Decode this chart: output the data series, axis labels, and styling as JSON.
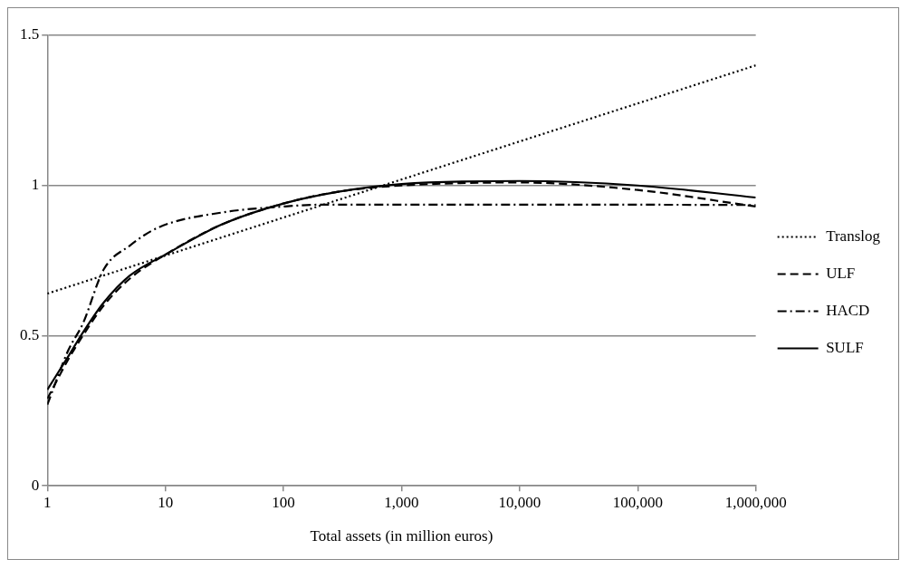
{
  "chart_data": {
    "type": "line",
    "xlabel": "Total assets (in million euros)",
    "log": "x",
    "xlim": [
      1,
      1000000
    ],
    "xticks": [
      1,
      10,
      100,
      {
        "value": 1000,
        "label": "1,000"
      },
      {
        "value": 10000,
        "label": "10,000"
      },
      {
        "value": 100000,
        "label": "100,000"
      },
      {
        "value": 1000000,
        "label": "1,000,000"
      }
    ],
    "ylim": [
      0,
      1.5
    ],
    "yticks": [
      0,
      0.5,
      1,
      1.5
    ],
    "grid": "y",
    "legend": "right",
    "marker": "none",
    "series": [
      {
        "name": "Translog",
        "color": "#000000",
        "line_style": "dotted",
        "x": [
          1,
          1000000
        ],
        "values": [
          0.64,
          1.4
        ]
      },
      {
        "name": "ULF",
        "color": "#000000",
        "line_style": "dashed",
        "x": [
          1,
          1.5,
          2,
          3,
          5,
          10,
          30,
          100,
          300,
          1000,
          10000,
          100000,
          1000000
        ],
        "values": [
          0.29,
          0.42,
          0.5,
          0.6,
          0.69,
          0.77,
          0.87,
          0.94,
          0.98,
          1.0,
          1.01,
          0.985,
          0.93
        ]
      },
      {
        "name": "HACD",
        "color": "#000000",
        "line_style": "dashdot",
        "x": [
          1,
          1.5,
          2,
          3,
          5,
          8.7,
          30,
          100,
          200,
          1000,
          10000,
          100000,
          1000000
        ],
        "values": [
          0.27,
          0.45,
          0.54,
          0.72,
          0.8,
          0.86,
          0.91,
          0.93,
          0.936,
          0.936,
          0.936,
          0.936,
          0.935
        ]
      },
      {
        "name": "SULF",
        "color": "#000000",
        "line_style": "solid",
        "x": [
          1,
          1.5,
          2,
          3,
          5,
          10,
          30,
          100,
          300,
          1000,
          10000,
          100000,
          1000000
        ],
        "values": [
          0.32,
          0.43,
          0.51,
          0.61,
          0.7,
          0.77,
          0.87,
          0.94,
          0.98,
          1.005,
          1.015,
          1.0,
          0.96
        ]
      }
    ]
  }
}
